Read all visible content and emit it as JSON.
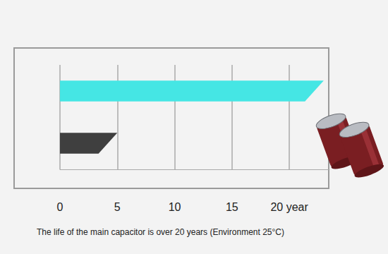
{
  "chart_data": {
    "type": "bar",
    "orientation": "horizontal",
    "title": "The life of the main capacitor is over 20 years (Environment 25°C)",
    "categories": [
      null,
      null
    ],
    "values": [
      23,
      5
    ],
    "colors": [
      "#45e6e4",
      "#3f3f3f"
    ],
    "xlim": [
      0,
      23.5
    ],
    "xticks": [
      0,
      5,
      10,
      15,
      {
        "value": 20,
        "label": "20 year"
      }
    ],
    "grid": true,
    "tick_labels": "x"
  }
}
